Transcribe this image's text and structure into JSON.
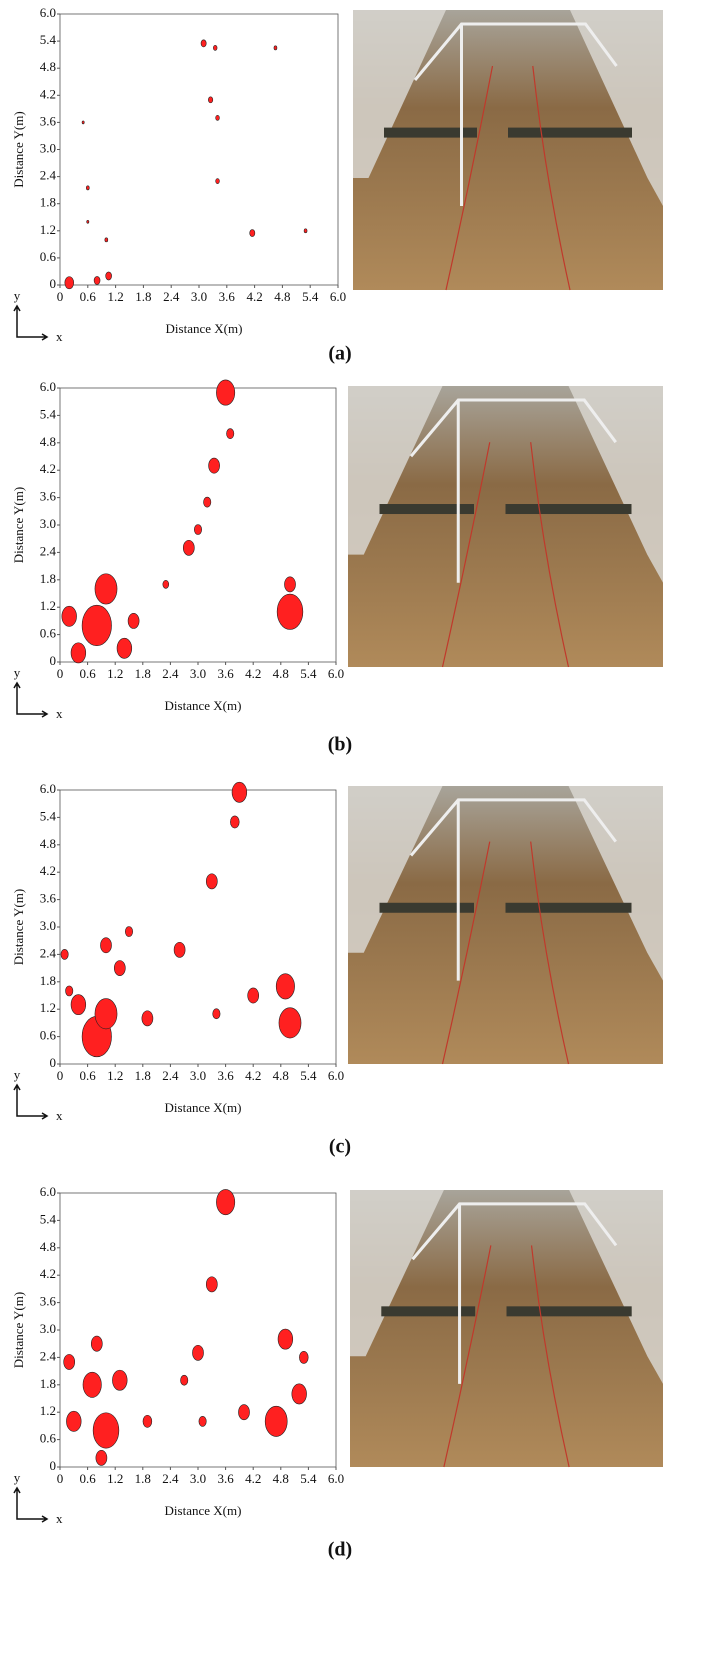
{
  "chart_data": [
    {
      "type": "scatter",
      "xlabel": "Distance X(m)",
      "ylabel": "Distance Y(m)",
      "axis_hint_x": "x",
      "axis_hint_y": "y",
      "panel_label": "(a)",
      "color": "#ff2020",
      "xlim": [
        0,
        6
      ],
      "ylim": [
        0,
        6
      ],
      "xticks": [
        0,
        0.6,
        1.2,
        1.8,
        2.4,
        {
          "value": 3,
          "label": "3.0"
        },
        3.6,
        4.2,
        4.8,
        5.4,
        {
          "value": 6,
          "label": "6.0"
        }
      ],
      "yticks": [
        0,
        0.6,
        1.2,
        1.8,
        2.4,
        {
          "value": 3,
          "label": "3.0"
        },
        3.6,
        4.2,
        4.8,
        5.4,
        {
          "value": 6,
          "label": "6.0"
        }
      ],
      "x": [
        0.2,
        0.8,
        1.05,
        3.1,
        3.35,
        3.25,
        3.4,
        3.4,
        4.15,
        4.65,
        0.5,
        0.6,
        1.0,
        5.3,
        0.6
      ],
      "y": [
        0.05,
        0.1,
        0.2,
        5.35,
        5.25,
        4.1,
        3.7,
        2.3,
        1.15,
        5.25,
        3.6,
        2.15,
        1.0,
        1.2,
        1.4
      ],
      "size": [
        0.12,
        0.08,
        0.08,
        0.07,
        0.05,
        0.06,
        0.05,
        0.05,
        0.07,
        0.04,
        0.03,
        0.04,
        0.04,
        0.04,
        0.03
      ]
    },
    {
      "type": "scatter",
      "xlabel": "Distance X(m)",
      "ylabel": "Distance Y(m)",
      "axis_hint_x": "x",
      "axis_hint_y": "y",
      "panel_label": "(b)",
      "color": "#ff2020",
      "xlim": [
        0,
        6
      ],
      "ylim": [
        0,
        6
      ],
      "xticks": [
        0,
        0.6,
        1.2,
        1.8,
        2.4,
        {
          "value": 3,
          "label": "3.0"
        },
        3.6,
        4.2,
        4.8,
        5.4,
        {
          "value": 6,
          "label": "6.0"
        }
      ],
      "yticks": [
        0,
        0.6,
        1.2,
        1.8,
        2.4,
        {
          "value": 3,
          "label": "3.0"
        },
        3.6,
        4.2,
        4.8,
        5.4,
        {
          "value": 6,
          "label": "6.0"
        }
      ],
      "x": [
        0.8,
        1.0,
        0.2,
        0.4,
        1.4,
        5.0,
        5.0,
        3.6,
        3.35,
        3.2,
        2.8,
        3.0,
        2.3,
        1.6,
        3.7
      ],
      "y": [
        0.8,
        1.6,
        1.0,
        0.2,
        0.3,
        1.1,
        1.7,
        5.9,
        4.3,
        3.5,
        2.5,
        2.9,
        1.7,
        0.9,
        5.0
      ],
      "size": [
        0.4,
        0.3,
        0.2,
        0.2,
        0.2,
        0.35,
        0.15,
        0.25,
        0.15,
        0.1,
        0.15,
        0.1,
        0.08,
        0.15,
        0.1
      ]
    },
    {
      "type": "scatter",
      "xlabel": "Distance X(m)",
      "ylabel": "Distance Y(m)",
      "axis_hint_x": "x",
      "axis_hint_y": "y",
      "panel_label": "(c)",
      "color": "#ff2020",
      "xlim": [
        0,
        6
      ],
      "ylim": [
        0,
        6
      ],
      "xticks": [
        0,
        0.6,
        1.2,
        1.8,
        2.4,
        {
          "value": 3,
          "label": "3.0"
        },
        3.6,
        4.2,
        4.8,
        5.4,
        {
          "value": 6,
          "label": "6.0"
        }
      ],
      "yticks": [
        0,
        0.6,
        1.2,
        1.8,
        2.4,
        {
          "value": 3,
          "label": "3.0"
        },
        3.6,
        4.2,
        4.8,
        5.4,
        {
          "value": 6,
          "label": "6.0"
        }
      ],
      "x": [
        0.8,
        1.0,
        0.4,
        1.3,
        1.0,
        1.5,
        0.1,
        5.0,
        4.9,
        4.2,
        3.4,
        2.6,
        3.3,
        3.8,
        3.9,
        0.2,
        1.9
      ],
      "y": [
        0.6,
        1.1,
        1.3,
        2.1,
        2.6,
        2.9,
        2.4,
        0.9,
        1.7,
        1.5,
        1.1,
        2.5,
        4.0,
        5.3,
        5.95,
        1.6,
        1.0
      ],
      "size": [
        0.4,
        0.3,
        0.2,
        0.15,
        0.15,
        0.1,
        0.1,
        0.3,
        0.25,
        0.15,
        0.1,
        0.15,
        0.15,
        0.12,
        0.2,
        0.1,
        0.15
      ]
    },
    {
      "type": "scatter",
      "xlabel": "Distance X(m)",
      "ylabel": "Distance Y(m)",
      "axis_hint_x": "x",
      "axis_hint_y": "y",
      "panel_label": "(d)",
      "color": "#ff2020",
      "xlim": [
        0,
        6
      ],
      "ylim": [
        0,
        6
      ],
      "xticks": [
        0,
        0.6,
        1.2,
        1.8,
        2.4,
        {
          "value": 3,
          "label": "3.0"
        },
        3.6,
        4.2,
        4.8,
        5.4,
        {
          "value": 6,
          "label": "6.0"
        }
      ],
      "yticks": [
        0,
        0.6,
        1.2,
        1.8,
        2.4,
        {
          "value": 3,
          "label": "3.0"
        },
        3.6,
        4.2,
        4.8,
        5.4,
        {
          "value": 6,
          "label": "6.0"
        }
      ],
      "x": [
        1.0,
        0.7,
        1.3,
        0.8,
        0.3,
        0.2,
        4.7,
        5.2,
        4.9,
        5.3,
        4.0,
        3.6,
        3.3,
        3.0,
        2.7,
        1.9,
        3.1,
        0.9
      ],
      "y": [
        0.8,
        1.8,
        1.9,
        2.7,
        1.0,
        2.3,
        1.0,
        1.6,
        2.8,
        2.4,
        1.2,
        5.8,
        4.0,
        2.5,
        1.9,
        1.0,
        1.0,
        0.2
      ],
      "size": [
        0.35,
        0.25,
        0.2,
        0.15,
        0.2,
        0.15,
        0.3,
        0.2,
        0.2,
        0.12,
        0.15,
        0.25,
        0.15,
        0.15,
        0.1,
        0.12,
        0.1,
        0.15
      ]
    }
  ]
}
